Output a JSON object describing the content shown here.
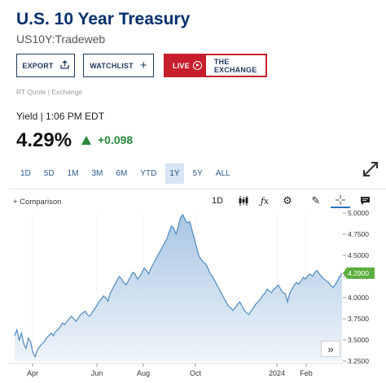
{
  "header": {
    "title": "U.S. 10 Year Treasury",
    "symbol": "US10Y:Tradeweb"
  },
  "actions": {
    "export_label": "EXPORT",
    "watchlist_label": "WATCHLIST",
    "live_label": "LIVE",
    "exchange_label": "THE EXCHANGE"
  },
  "quote": {
    "source": "RT Quote | Exchange",
    "yield_label": "Yield | 1:06 PM EDT",
    "price": "4.29%",
    "change": "+0.098"
  },
  "ranges": [
    {
      "label": "1D",
      "active": false
    },
    {
      "label": "5D",
      "active": false
    },
    {
      "label": "1M",
      "active": false
    },
    {
      "label": "3M",
      "active": false
    },
    {
      "label": "6M",
      "active": false
    },
    {
      "label": "YTD",
      "active": false
    },
    {
      "label": "1Y",
      "active": true
    },
    {
      "label": "5Y",
      "active": false
    },
    {
      "label": "ALL",
      "active": false
    }
  ],
  "chart_toolbar": {
    "comparison_label": "+ Comparison",
    "interval_label": "1D",
    "icons": [
      "candlestick-icon",
      "function-icon",
      "gear-icon",
      "pencil-icon",
      "crosshair-icon",
      "comment-icon"
    ]
  },
  "colors": {
    "line": "#4f8ac0",
    "fill_top": "#a9c6e3",
    "fill_bottom": "#eef4fa",
    "price_tag": "#5cae3e",
    "change": "#2a8a3c",
    "title": "#002f6c"
  },
  "chart_data": {
    "type": "area",
    "x_ticks": [
      "Apr",
      "Jun",
      "Aug",
      "Oct",
      "2024",
      "Feb"
    ],
    "y_ticks": [
      "5.0000",
      "4.7500",
      "4.5000",
      "4.2500",
      "4.0000",
      "3.7500",
      "3.5000",
      "3.2500"
    ],
    "ylim": [
      3.25,
      5.0
    ],
    "last_value": 4.29,
    "last_label": "4.2900",
    "series": [
      {
        "values": [
          3.55,
          3.62,
          3.5,
          3.58,
          3.45,
          3.4,
          3.52,
          3.48,
          3.35,
          3.3,
          3.38,
          3.42,
          3.45,
          3.48,
          3.52,
          3.55,
          3.58,
          3.55,
          3.6,
          3.62,
          3.65,
          3.7,
          3.68,
          3.72,
          3.75,
          3.78,
          3.75,
          3.72,
          3.76,
          3.8,
          3.82,
          3.84,
          3.8,
          3.78,
          3.82,
          3.86,
          3.9,
          3.95,
          3.98,
          4.02,
          4.0,
          3.96,
          4.05,
          4.1,
          4.15,
          4.2,
          4.25,
          4.22,
          4.18,
          4.15,
          4.2,
          4.25,
          4.3,
          4.28,
          4.22,
          4.25,
          4.3,
          4.35,
          4.32,
          4.28,
          4.35,
          4.4,
          4.45,
          4.5,
          4.55,
          4.6,
          4.65,
          4.7,
          4.78,
          4.85,
          4.82,
          4.75,
          4.85,
          4.95,
          4.98,
          4.92,
          4.88,
          4.9,
          4.8,
          4.7,
          4.6,
          4.5,
          4.45,
          4.42,
          4.4,
          4.35,
          4.28,
          4.25,
          4.2,
          4.15,
          4.1,
          4.05,
          4.0,
          3.95,
          3.9,
          3.88,
          3.85,
          3.88,
          3.92,
          3.95,
          3.9,
          3.85,
          3.82,
          3.8,
          3.84,
          3.88,
          3.92,
          3.95,
          3.98,
          4.02,
          4.05,
          4.1,
          4.08,
          4.06,
          4.1,
          4.12,
          4.15,
          4.1,
          4.06,
          4.05,
          3.95,
          4.05,
          4.1,
          4.15,
          4.18,
          4.16,
          4.2,
          4.24,
          4.22,
          4.26,
          4.28,
          4.25,
          4.3,
          4.32,
          4.28,
          4.25,
          4.22,
          4.2,
          4.18,
          4.15,
          4.12,
          4.15,
          4.2,
          4.25,
          4.29
        ]
      }
    ]
  }
}
